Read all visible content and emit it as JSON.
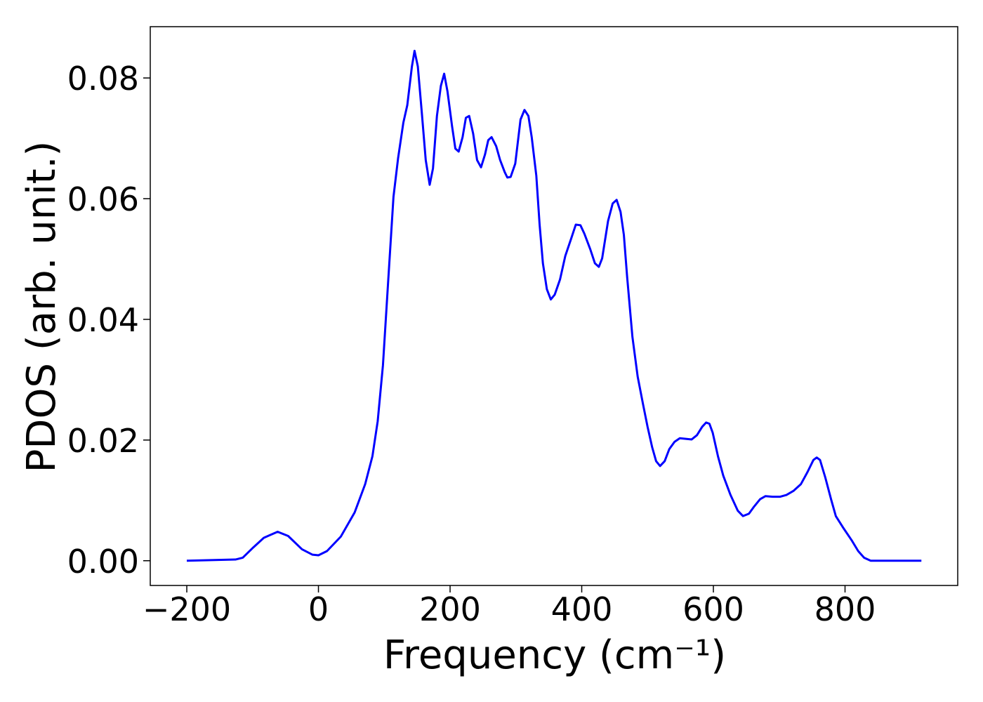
{
  "chart_data": {
    "type": "line",
    "xlabel": "Frequency (cm⁻¹)",
    "ylabel": "PDOS (arb. unit.)",
    "x": [
      -200,
      -126,
      -115,
      -99,
      -83,
      -62,
      -46,
      -25,
      -9,
      0,
      13,
      34,
      55,
      71,
      82,
      90,
      98,
      106,
      114,
      121,
      129,
      135,
      142,
      146,
      151,
      157,
      163,
      169,
      174,
      180,
      186,
      191,
      196,
      203,
      208,
      213,
      219,
      224,
      229,
      235,
      241,
      247,
      253,
      258,
      263,
      270,
      276,
      283,
      287,
      292,
      299,
      307,
      313,
      319,
      324,
      331,
      336,
      341,
      347,
      353,
      359,
      367,
      375,
      384,
      391,
      398,
      404,
      413,
      420,
      426,
      431,
      440,
      447,
      453,
      459,
      464,
      469,
      477,
      485,
      493,
      500,
      507,
      513,
      519,
      526,
      533,
      541,
      549,
      558,
      567,
      575,
      583,
      589,
      594,
      599,
      607,
      615,
      626,
      637,
      645,
      654,
      662,
      671,
      679,
      690,
      701,
      711,
      722,
      733,
      743,
      752,
      757,
      762,
      770,
      779,
      786,
      797,
      810,
      820,
      829,
      839,
      916
    ],
    "series": [
      {
        "color": "#0000ff",
        "values": [
          0,
          0.0002,
          0.0005,
          0.0022,
          0.0038,
          0.0048,
          0.0041,
          0.0019,
          0.001,
          0.0009,
          0.0016,
          0.004,
          0.008,
          0.0127,
          0.0173,
          0.0231,
          0.0324,
          0.0464,
          0.0603,
          0.0667,
          0.0726,
          0.0755,
          0.0819,
          0.0845,
          0.0819,
          0.0743,
          0.0664,
          0.0623,
          0.065,
          0.0737,
          0.0787,
          0.0807,
          0.0778,
          0.072,
          0.0683,
          0.0678,
          0.0702,
          0.0734,
          0.0737,
          0.0708,
          0.0664,
          0.0652,
          0.0673,
          0.0697,
          0.0702,
          0.0687,
          0.0664,
          0.0644,
          0.0635,
          0.0636,
          0.0658,
          0.0731,
          0.0747,
          0.0737,
          0.0702,
          0.0638,
          0.0557,
          0.0493,
          0.045,
          0.0433,
          0.0441,
          0.0466,
          0.0505,
          0.0534,
          0.0557,
          0.0556,
          0.0542,
          0.0516,
          0.0493,
          0.0487,
          0.0501,
          0.0563,
          0.0592,
          0.0598,
          0.0578,
          0.054,
          0.047,
          0.0371,
          0.0305,
          0.026,
          0.0222,
          0.0188,
          0.0165,
          0.0157,
          0.0165,
          0.0185,
          0.0197,
          0.0203,
          0.0202,
          0.0201,
          0.0208,
          0.0222,
          0.0229,
          0.0227,
          0.0212,
          0.0173,
          0.0141,
          0.0109,
          0.0083,
          0.0074,
          0.0078,
          0.009,
          0.0102,
          0.0107,
          0.0106,
          0.0106,
          0.0109,
          0.0116,
          0.0127,
          0.0147,
          0.0167,
          0.0171,
          0.0167,
          0.0138,
          0.0101,
          0.0074,
          0.0055,
          0.0034,
          0.0016,
          0.0005,
          0,
          0
        ]
      }
    ],
    "xlim": [
      -255.5,
      971.2
    ],
    "ylim": [
      -0.0041,
      0.0885
    ],
    "xticks": [
      {
        "value": -200,
        "label": "−200"
      },
      0,
      200,
      400,
      600,
      800
    ],
    "yticks": [
      {
        "value": 0,
        "label": "0.00"
      },
      {
        "value": 0.02,
        "label": "0.02"
      },
      {
        "value": 0.04,
        "label": "0.04"
      },
      {
        "value": 0.06,
        "label": "0.06"
      },
      {
        "value": 0.08,
        "label": "0.08"
      }
    ]
  }
}
